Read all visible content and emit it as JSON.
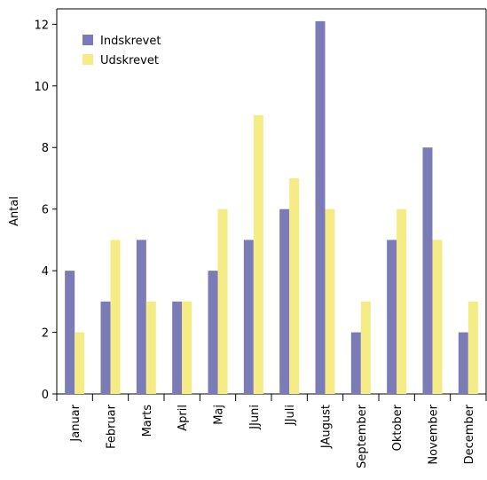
{
  "chart_data": {
    "type": "bar",
    "title": "",
    "xlabel": "",
    "ylabel": "Antal",
    "ylim": [
      0,
      12.5
    ],
    "yticks": [
      0,
      2,
      4,
      6,
      8,
      10,
      12
    ],
    "grid": false,
    "legend_position": "top-left",
    "categories": [
      "Januar",
      "Februar",
      "Marts",
      "April",
      "Maj",
      "JJuni",
      "JJuli",
      "JAugust",
      "September",
      "Oktober",
      "November",
      "December"
    ],
    "series": [
      {
        "name": "Indskrevet",
        "color": "#7b7bb8",
        "values": [
          4,
          3,
          5,
          3,
          4,
          5,
          6,
          12.1,
          2,
          5,
          8,
          2
        ]
      },
      {
        "name": "Udskrevet",
        "color": "#f5ec86",
        "values": [
          2,
          5,
          3,
          3,
          6,
          9.05,
          7,
          6,
          3,
          6,
          5,
          3
        ]
      }
    ]
  }
}
